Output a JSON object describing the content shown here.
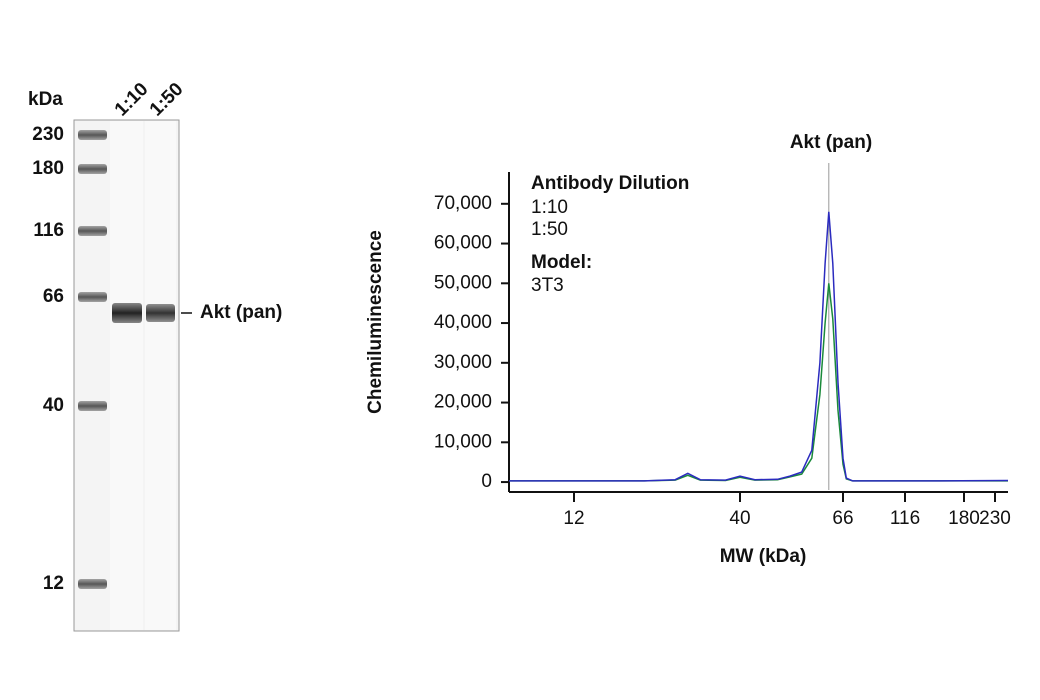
{
  "gel": {
    "unit": "kDa",
    "ladder": [
      "230",
      "180",
      "116",
      "66",
      "40",
      "12"
    ],
    "lanes": [
      "1:10",
      "1:50"
    ],
    "band_label": "Akt (pan)"
  },
  "chart_data": {
    "type": "line",
    "annotation": {
      "text": "Akt (pan)",
      "x": 61.6
    },
    "ylabel": "Chemiluminescence",
    "xlabel": "MW (kDa)",
    "legend_title": "Antibody Dilution",
    "model_title": "Model:",
    "model": "3T3",
    "x": [
      7.5,
      12,
      20,
      25,
      27.4,
      30,
      36,
      40,
      43,
      48,
      51,
      54,
      56.7,
      59,
      60.5,
      61.6,
      62.8,
      64.4,
      66,
      68,
      72,
      100,
      150,
      254
    ],
    "series": [
      {
        "name": "1:10",
        "color": "#2b2bbf",
        "values": [
          300,
          300,
          300,
          600,
          2200,
          600,
          500,
          1500,
          600,
          700,
          1500,
          2500,
          8000,
          30000,
          55000,
          68000,
          55000,
          25000,
          6000,
          1000,
          300,
          300,
          300,
          400
        ]
      },
      {
        "name": "1:50",
        "color": "#1a8a3a",
        "values": [
          300,
          300,
          300,
          500,
          1700,
          500,
          400,
          1200,
          500,
          600,
          1300,
          2000,
          6000,
          22000,
          40000,
          50000,
          41000,
          18000,
          4500,
          800,
          300,
          300,
          300,
          300
        ]
      }
    ],
    "xlim": [
      7.5,
      254
    ],
    "xticks": [
      12,
      40,
      66,
      116,
      180,
      230
    ],
    "ylim": [
      -2500,
      78000
    ],
    "yticks": [
      0,
      {
        "value": 10000,
        "label": "10,000"
      },
      {
        "value": 20000,
        "label": "20,000"
      },
      {
        "value": 30000,
        "label": "30,000"
      },
      {
        "value": 40000,
        "label": "40,000"
      },
      {
        "value": 50000,
        "label": "50,000"
      },
      {
        "value": 60000,
        "label": "60,000"
      },
      {
        "value": 70000,
        "label": "70,000"
      }
    ]
  }
}
